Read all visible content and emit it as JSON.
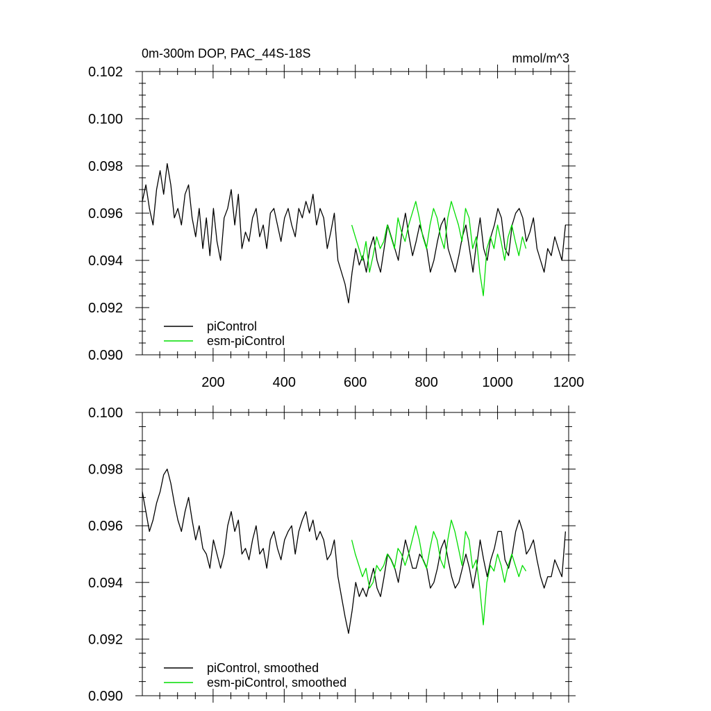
{
  "chart_data": [
    {
      "type": "line",
      "title": "0m-300m DOP, PAC_44S-18S",
      "units": "mmol/m^3",
      "xlim": [
        1,
        1200
      ],
      "ylim": [
        0.09,
        0.102
      ],
      "x_ticks": [
        200,
        400,
        600,
        800,
        1000,
        1200
      ],
      "y_ticks": [
        "0.090",
        "0.092",
        "0.094",
        "0.096",
        "0.098",
        "0.100",
        "0.102"
      ],
      "legend_position": "bottom-left",
      "series": [
        {
          "name": "piControl",
          "color": "#000000",
          "x_start": 1,
          "x_step": 10,
          "values": [
            0.0965,
            0.0972,
            0.0962,
            0.0955,
            0.097,
            0.0978,
            0.0968,
            0.0981,
            0.0972,
            0.0958,
            0.0962,
            0.0955,
            0.0968,
            0.0972,
            0.0958,
            0.095,
            0.0962,
            0.0945,
            0.0958,
            0.0942,
            0.0962,
            0.0948,
            0.094,
            0.0958,
            0.0962,
            0.097,
            0.0955,
            0.0968,
            0.0945,
            0.0952,
            0.0948,
            0.0958,
            0.0962,
            0.095,
            0.0955,
            0.0945,
            0.096,
            0.0962,
            0.0955,
            0.0948,
            0.0958,
            0.0962,
            0.0955,
            0.095,
            0.0962,
            0.0958,
            0.0965,
            0.096,
            0.0968,
            0.0955,
            0.0962,
            0.0958,
            0.0945,
            0.0952,
            0.096,
            0.094,
            0.0935,
            0.093,
            0.0922,
            0.0935,
            0.0945,
            0.0938,
            0.0942,
            0.0935,
            0.0945,
            0.095,
            0.094,
            0.0935,
            0.0945,
            0.0955,
            0.095,
            0.0945,
            0.094,
            0.0952,
            0.096,
            0.095,
            0.0942,
            0.0948,
            0.0955,
            0.095,
            0.0945,
            0.0935,
            0.094,
            0.0948,
            0.0955,
            0.0958,
            0.0945,
            0.094,
            0.0935,
            0.0942,
            0.095,
            0.0955,
            0.0945,
            0.0935,
            0.0948,
            0.0958,
            0.0945,
            0.094,
            0.095,
            0.0955,
            0.0962,
            0.0958,
            0.0945,
            0.0942,
            0.0955,
            0.096,
            0.0962,
            0.0958,
            0.0948,
            0.0952,
            0.0958,
            0.0945,
            0.094,
            0.0935,
            0.0945,
            0.0942,
            0.095,
            0.0945,
            0.094,
            0.0955
          ]
        },
        {
          "name": "esm-piControl",
          "color": "#00dd00",
          "x_start": 590,
          "x_step": 10,
          "values": [
            0.0955,
            0.095,
            0.0945,
            0.094,
            0.0948,
            0.0935,
            0.0942,
            0.095,
            0.0945,
            0.0948,
            0.0955,
            0.095,
            0.0945,
            0.0958,
            0.0952,
            0.0948,
            0.0955,
            0.096,
            0.0965,
            0.0958,
            0.095,
            0.0945,
            0.0955,
            0.0962,
            0.0958,
            0.095,
            0.0945,
            0.0958,
            0.0965,
            0.096,
            0.0955,
            0.0948,
            0.0962,
            0.0958,
            0.0945,
            0.095,
            0.0935,
            0.0925,
            0.0945,
            0.095,
            0.0945,
            0.0955,
            0.0948,
            0.094,
            0.095,
            0.0955,
            0.0948,
            0.0942,
            0.095,
            0.0945
          ]
        }
      ]
    },
    {
      "type": "line",
      "xlim": [
        1,
        1200
      ],
      "ylim": [
        0.09,
        0.1
      ],
      "y_ticks": [
        "0.090",
        "0.092",
        "0.094",
        "0.096",
        "0.098",
        "0.100"
      ],
      "legend_position": "bottom-left",
      "series": [
        {
          "name": "piControl, smoothed",
          "color": "#000000",
          "x_start": 1,
          "x_step": 10,
          "values": [
            0.0972,
            0.0965,
            0.0958,
            0.0962,
            0.0968,
            0.0972,
            0.0978,
            0.098,
            0.0975,
            0.0968,
            0.0962,
            0.0958,
            0.0965,
            0.097,
            0.0962,
            0.0955,
            0.096,
            0.0952,
            0.095,
            0.0945,
            0.0955,
            0.095,
            0.0945,
            0.095,
            0.096,
            0.0965,
            0.0958,
            0.0962,
            0.095,
            0.0952,
            0.0948,
            0.0955,
            0.096,
            0.095,
            0.0952,
            0.0945,
            0.0955,
            0.0958,
            0.0952,
            0.0948,
            0.0955,
            0.0958,
            0.096,
            0.095,
            0.0958,
            0.0962,
            0.0965,
            0.0958,
            0.0962,
            0.0955,
            0.0958,
            0.0955,
            0.0948,
            0.095,
            0.0955,
            0.0942,
            0.0935,
            0.0928,
            0.0922,
            0.093,
            0.094,
            0.0935,
            0.0938,
            0.0935,
            0.094,
            0.0945,
            0.0938,
            0.0935,
            0.0942,
            0.095,
            0.0948,
            0.0945,
            0.094,
            0.0948,
            0.0955,
            0.095,
            0.0945,
            0.0945,
            0.095,
            0.0948,
            0.0945,
            0.0938,
            0.094,
            0.0945,
            0.0952,
            0.0955,
            0.0948,
            0.0942,
            0.0938,
            0.094,
            0.0945,
            0.095,
            0.0945,
            0.0938,
            0.0945,
            0.0955,
            0.0948,
            0.0942,
            0.0948,
            0.0952,
            0.0958,
            0.0958,
            0.0948,
            0.0945,
            0.095,
            0.0958,
            0.0962,
            0.0958,
            0.095,
            0.0952,
            0.0955,
            0.0948,
            0.0942,
            0.0938,
            0.0942,
            0.0942,
            0.0948,
            0.0945,
            0.0942,
            0.0958
          ]
        },
        {
          "name": "esm-piControl, smoothed",
          "color": "#00dd00",
          "x_start": 590,
          "x_step": 10,
          "values": [
            0.0955,
            0.095,
            0.0946,
            0.0942,
            0.0945,
            0.0938,
            0.094,
            0.0946,
            0.0944,
            0.0946,
            0.095,
            0.0948,
            0.0945,
            0.0952,
            0.095,
            0.0946,
            0.095,
            0.0955,
            0.096,
            0.0955,
            0.0948,
            0.0945,
            0.0952,
            0.0958,
            0.0955,
            0.0948,
            0.0945,
            0.0955,
            0.0962,
            0.0958,
            0.0952,
            0.0946,
            0.0958,
            0.0955,
            0.0945,
            0.0948,
            0.0938,
            0.0925,
            0.094,
            0.0946,
            0.0944,
            0.095,
            0.0946,
            0.094,
            0.0946,
            0.095,
            0.0946,
            0.0942,
            0.0946,
            0.0944
          ]
        }
      ]
    }
  ]
}
